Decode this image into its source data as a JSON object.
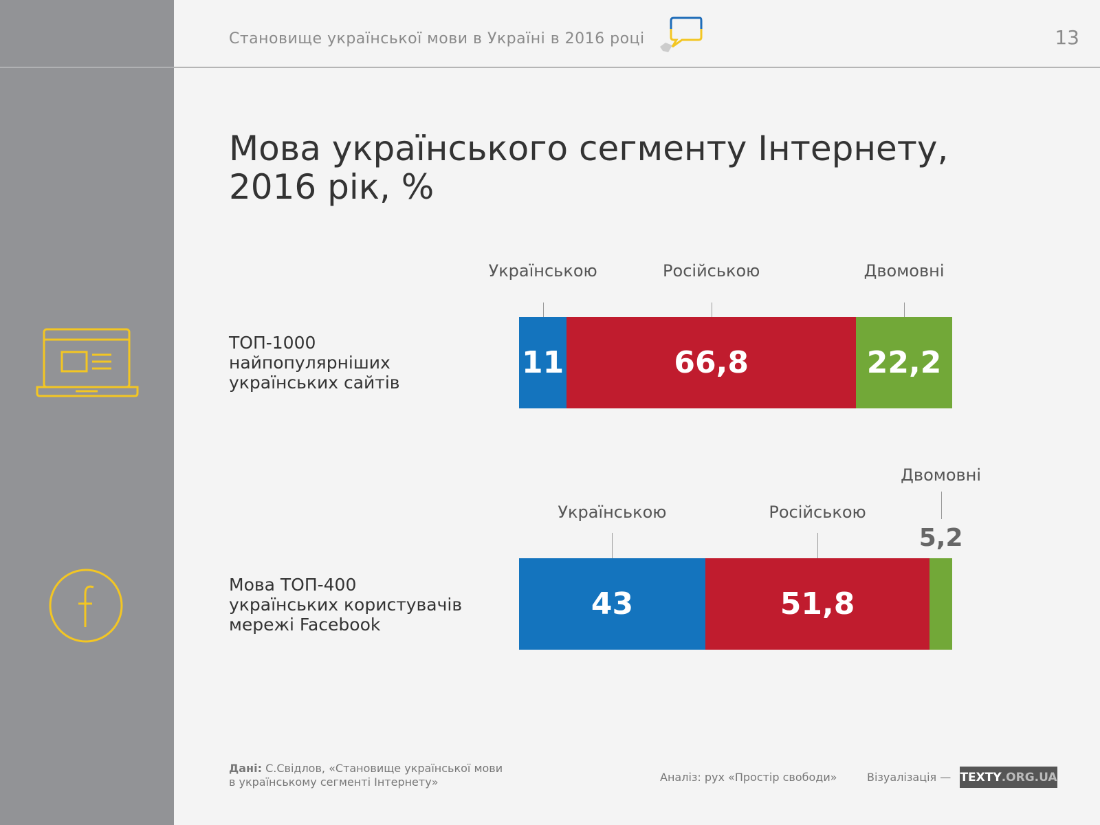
{
  "header": {
    "title": "Становище української мови в Україні в 2016 році",
    "page_number": "13"
  },
  "chart_data": {
    "type": "bar",
    "stacked": true,
    "title": "Мова українського сегменту Інтернету, 2016 рік, %",
    "legend": [
      "Українською",
      "Російською",
      "Двомовні"
    ],
    "colors": [
      "#1474be",
      "#c01c2e",
      "#72a838"
    ],
    "rows": [
      {
        "label": [
          "ТОП-1000",
          "найпопулярніших",
          "українських сайтів"
        ],
        "icon": "laptop-icon",
        "values": [
          11,
          66.8,
          22.2
        ],
        "value_labels": [
          "11",
          "66,8",
          "22,2"
        ]
      },
      {
        "label": [
          "Мова ТОП-400",
          "українських користувачів",
          "мережі Facebook"
        ],
        "icon": "facebook-icon",
        "values": [
          43,
          51.8,
          5.2
        ],
        "value_labels": [
          "43",
          "51,8",
          "5,2"
        ]
      }
    ],
    "xlim": [
      0,
      100
    ]
  },
  "footer": {
    "source_label": "Дані:",
    "source_text": "С.Свідлов, «Становище української мови",
    "source_text2": "в українському сегменті Інтернету»",
    "analysis": "Аналіз: рух «Простір свободи»",
    "visualization": "Візуалізація —",
    "brand_main": "TEXTY",
    "brand_rest": ".ORG.UA"
  }
}
